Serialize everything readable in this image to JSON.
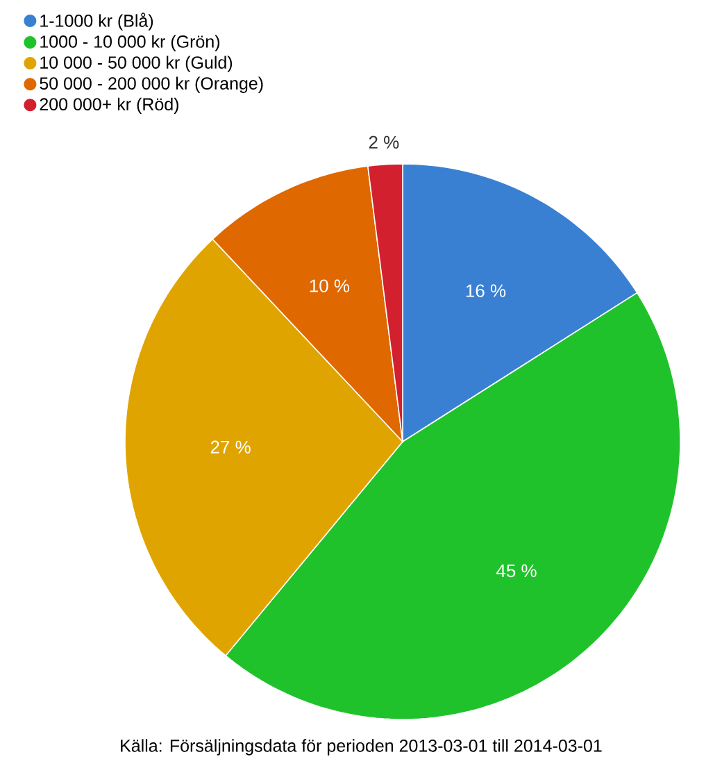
{
  "chart_data": {
    "type": "pie",
    "categories": [
      "1-1000 kr (Blå)",
      "1000 - 10 000 kr (Grön)",
      "10 000 - 50 000 kr (Guld)",
      "50 000 - 200 000 kr (Orange)",
      "200 000+ kr (Röd)"
    ],
    "values": [
      16,
      45,
      27,
      10,
      2
    ],
    "colors": [
      "#3a80d2",
      "#20c22c",
      "#e0a400",
      "#e06800",
      "#d2202e"
    ],
    "value_labels": [
      "16 %",
      "45 %",
      "27 %",
      "10 %",
      "2 %"
    ],
    "legend": "top left",
    "annotations": [
      "Källa: Försäljningsdata för perioden 2013-03-01 till 2014-03-01"
    ]
  }
}
